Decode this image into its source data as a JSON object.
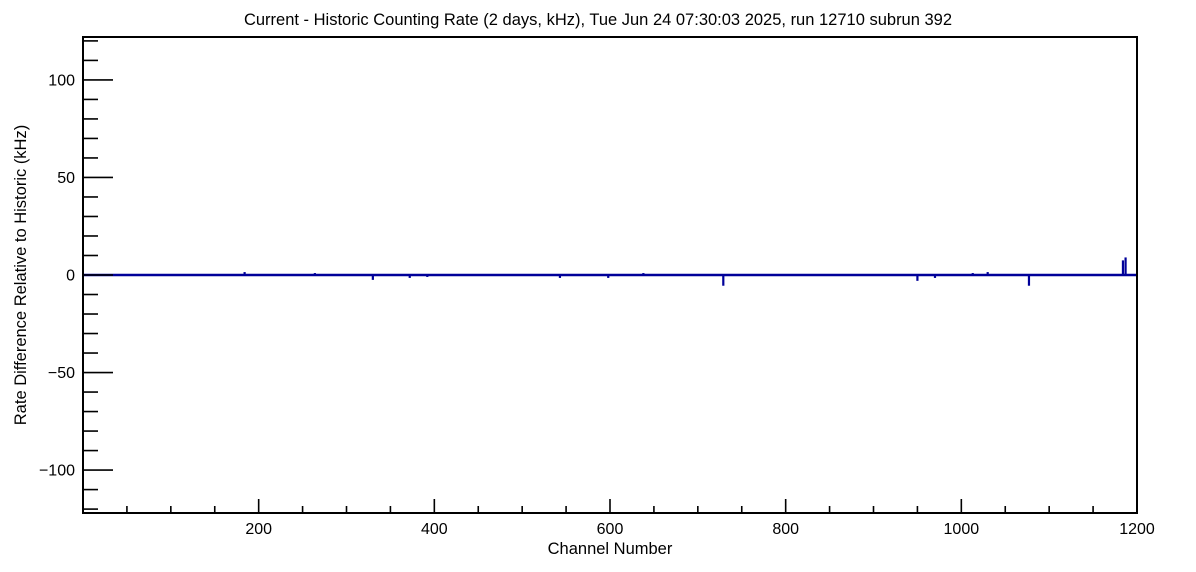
{
  "chart_data": {
    "type": "line",
    "title": "Current - Historic Counting Rate (2 days, kHz), Tue Jun 24 07:30:03 2025, run 12710 subrun 392",
    "xlabel": "Channel Number",
    "ylabel": "Rate Difference Relative to Historic (kHz)",
    "xlim": [
      0,
      1200
    ],
    "ylim": [
      -122,
      122
    ],
    "grid": false,
    "legend": false,
    "background_color": "#ffffff",
    "frame_color": "#000000",
    "line_color": "#000099",
    "x_major_ticks": [
      200,
      400,
      600,
      800,
      1000,
      1200
    ],
    "xtick_labels": [
      "200",
      "400",
      "600",
      "800",
      "1000",
      "1200"
    ],
    "x_minor_step": 50,
    "y_major_ticks": [
      100,
      50,
      0,
      -50,
      -100
    ],
    "ytick_labels": [
      "100",
      "50",
      "0",
      "−50",
      "−100"
    ],
    "y_minor_step": 10,
    "baseline_value": 0,
    "series": [
      {
        "name": "rate-difference",
        "description": "Flat at 0 kHz for nearly all channels with small spikes",
        "spikes": [
          {
            "channel": 184,
            "value": 1.5
          },
          {
            "channel": 264,
            "value": 1.0
          },
          {
            "channel": 330,
            "value": -2.5
          },
          {
            "channel": 372,
            "value": -1.5
          },
          {
            "channel": 392,
            "value": -1.0
          },
          {
            "channel": 543,
            "value": -1.5
          },
          {
            "channel": 598,
            "value": -1.5
          },
          {
            "channel": 638,
            "value": 1.0
          },
          {
            "channel": 729,
            "value": -5.5
          },
          {
            "channel": 950,
            "value": -3.0
          },
          {
            "channel": 970,
            "value": -1.5
          },
          {
            "channel": 1013,
            "value": 1.0
          },
          {
            "channel": 1030,
            "value": 1.5
          },
          {
            "channel": 1077,
            "value": -5.5
          },
          {
            "channel": 1184,
            "value": 7.5
          },
          {
            "channel": 1187,
            "value": 9.0
          }
        ]
      }
    ]
  }
}
